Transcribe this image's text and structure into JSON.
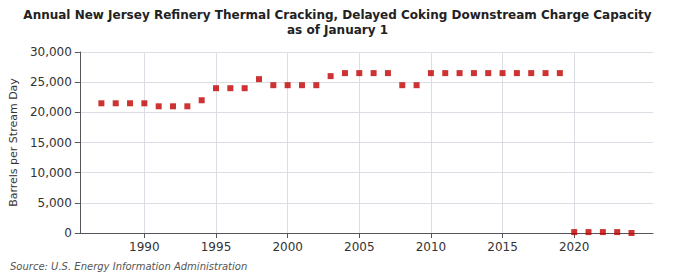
{
  "chart_data": {
    "type": "scatter",
    "title": "Annual New Jersey Refinery Thermal Cracking, Delayed Coking Downstream Charge Capacity",
    "subtitle": "as of January 1",
    "ylabel": "Barrels per Stream Day",
    "annotations": [
      "Source: U.S. Energy Information Administration"
    ],
    "x": [
      1987,
      1988,
      1989,
      1990,
      1991,
      1992,
      1993,
      1994,
      1995,
      1996,
      1997,
      1998,
      1999,
      2000,
      2001,
      2002,
      2003,
      2004,
      2005,
      2006,
      2007,
      2008,
      2009,
      2010,
      2011,
      2012,
      2013,
      2014,
      2015,
      2016,
      2017,
      2018,
      2019,
      2020,
      2021,
      2022,
      2023,
      2024
    ],
    "values": [
      21500,
      21500,
      21500,
      21500,
      21000,
      21000,
      21000,
      22000,
      24000,
      24000,
      24000,
      25500,
      24500,
      24500,
      24500,
      24500,
      26000,
      26500,
      26500,
      26500,
      26500,
      24500,
      24500,
      26500,
      26500,
      26500,
      26500,
      26500,
      26500,
      26500,
      26500,
      26500,
      26500,
      150,
      150,
      150,
      150,
      0
    ],
    "color": "#c00000",
    "marker": "square",
    "xlim": [
      1985.5,
      2025.5
    ],
    "xticks": [
      1990,
      1995,
      2000,
      2005,
      2010,
      2015,
      2020
    ],
    "ylim": [
      0,
      30000
    ],
    "yticks": [
      0,
      {
        "value": 5000,
        "label": "5,000"
      },
      {
        "value": 10000,
        "label": "10,000"
      },
      {
        "value": 15000,
        "label": "15,000"
      },
      {
        "value": 20000,
        "label": "20,000"
      },
      {
        "value": 25000,
        "label": "25,000"
      },
      {
        "value": 30000,
        "label": "30,000"
      }
    ],
    "grid": true
  }
}
